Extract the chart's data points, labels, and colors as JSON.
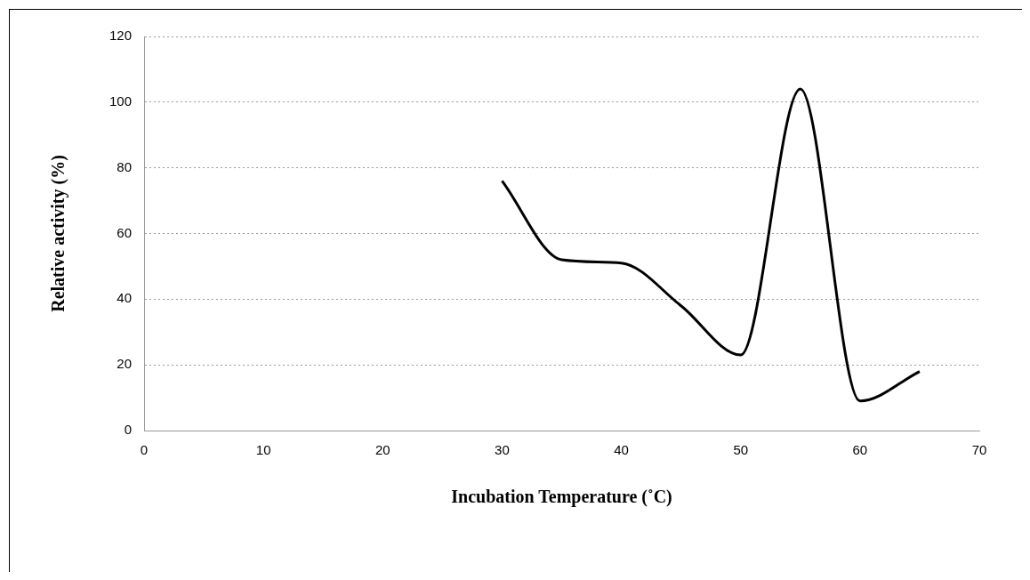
{
  "chart_data": {
    "type": "line",
    "xlabel": "Incubation Temperature (˚C)",
    "ylabel": "Relative activity (%)",
    "x": [
      30,
      35,
      40,
      45,
      50,
      55,
      60,
      65
    ],
    "series": [
      {
        "color": "#000000",
        "values": [
          76,
          52,
          51,
          38,
          23,
          104,
          9,
          18
        ]
      }
    ],
    "xlim": [
      0,
      70
    ],
    "xticks": [
      0,
      10,
      20,
      30,
      40,
      50,
      60,
      70
    ],
    "ylim": [
      0,
      120
    ],
    "yticks": [
      0,
      20,
      40,
      60,
      80,
      100,
      120
    ],
    "grid": "y",
    "legend": false,
    "marker": "none",
    "line_style": "solid"
  }
}
